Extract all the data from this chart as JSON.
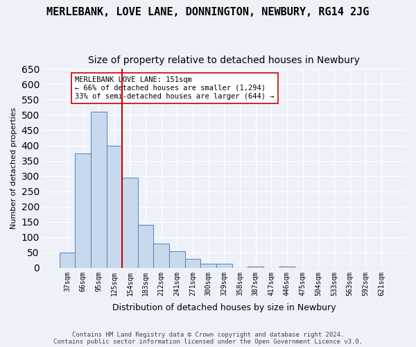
{
  "title": "MERLEBANK, LOVE LANE, DONNINGTON, NEWBURY, RG14 2JG",
  "subtitle": "Size of property relative to detached houses in Newbury",
  "xlabel": "Distribution of detached houses by size in Newbury",
  "ylabel": "Number of detached properties",
  "footer_line1": "Contains HM Land Registry data © Crown copyright and database right 2024.",
  "footer_line2": "Contains public sector information licensed under the Open Government Licence v3.0.",
  "bin_labels": [
    "37sqm",
    "66sqm",
    "95sqm",
    "125sqm",
    "154sqm",
    "183sqm",
    "212sqm",
    "241sqm",
    "271sqm",
    "300sqm",
    "329sqm",
    "358sqm",
    "387sqm",
    "417sqm",
    "446sqm",
    "475sqm",
    "504sqm",
    "533sqm",
    "563sqm",
    "592sqm",
    "621sqm"
  ],
  "bar_values": [
    50,
    375,
    510,
    400,
    295,
    140,
    80,
    55,
    30,
    12,
    12,
    0,
    5,
    0,
    5,
    0,
    0,
    0,
    0,
    0,
    0
  ],
  "bar_color": "#c9d9ed",
  "bar_edge_color": "#5b8ec4",
  "vline_x_index": 3,
  "vline_color": "#cc0000",
  "annotation_text": "MERLEBANK LOVE LANE: 151sqm\n← 66% of detached houses are smaller (1,294)\n33% of semi-detached houses are larger (644) →",
  "annotation_box_color": "#ffffff",
  "annotation_box_edge": "#cc0000",
  "ylim": [
    0,
    650
  ],
  "yticks": [
    0,
    50,
    100,
    150,
    200,
    250,
    300,
    350,
    400,
    450,
    500,
    550,
    600,
    650
  ],
  "bg_color": "#eef2f8",
  "grid_color": "#ffffff",
  "title_fontsize": 11,
  "subtitle_fontsize": 10
}
